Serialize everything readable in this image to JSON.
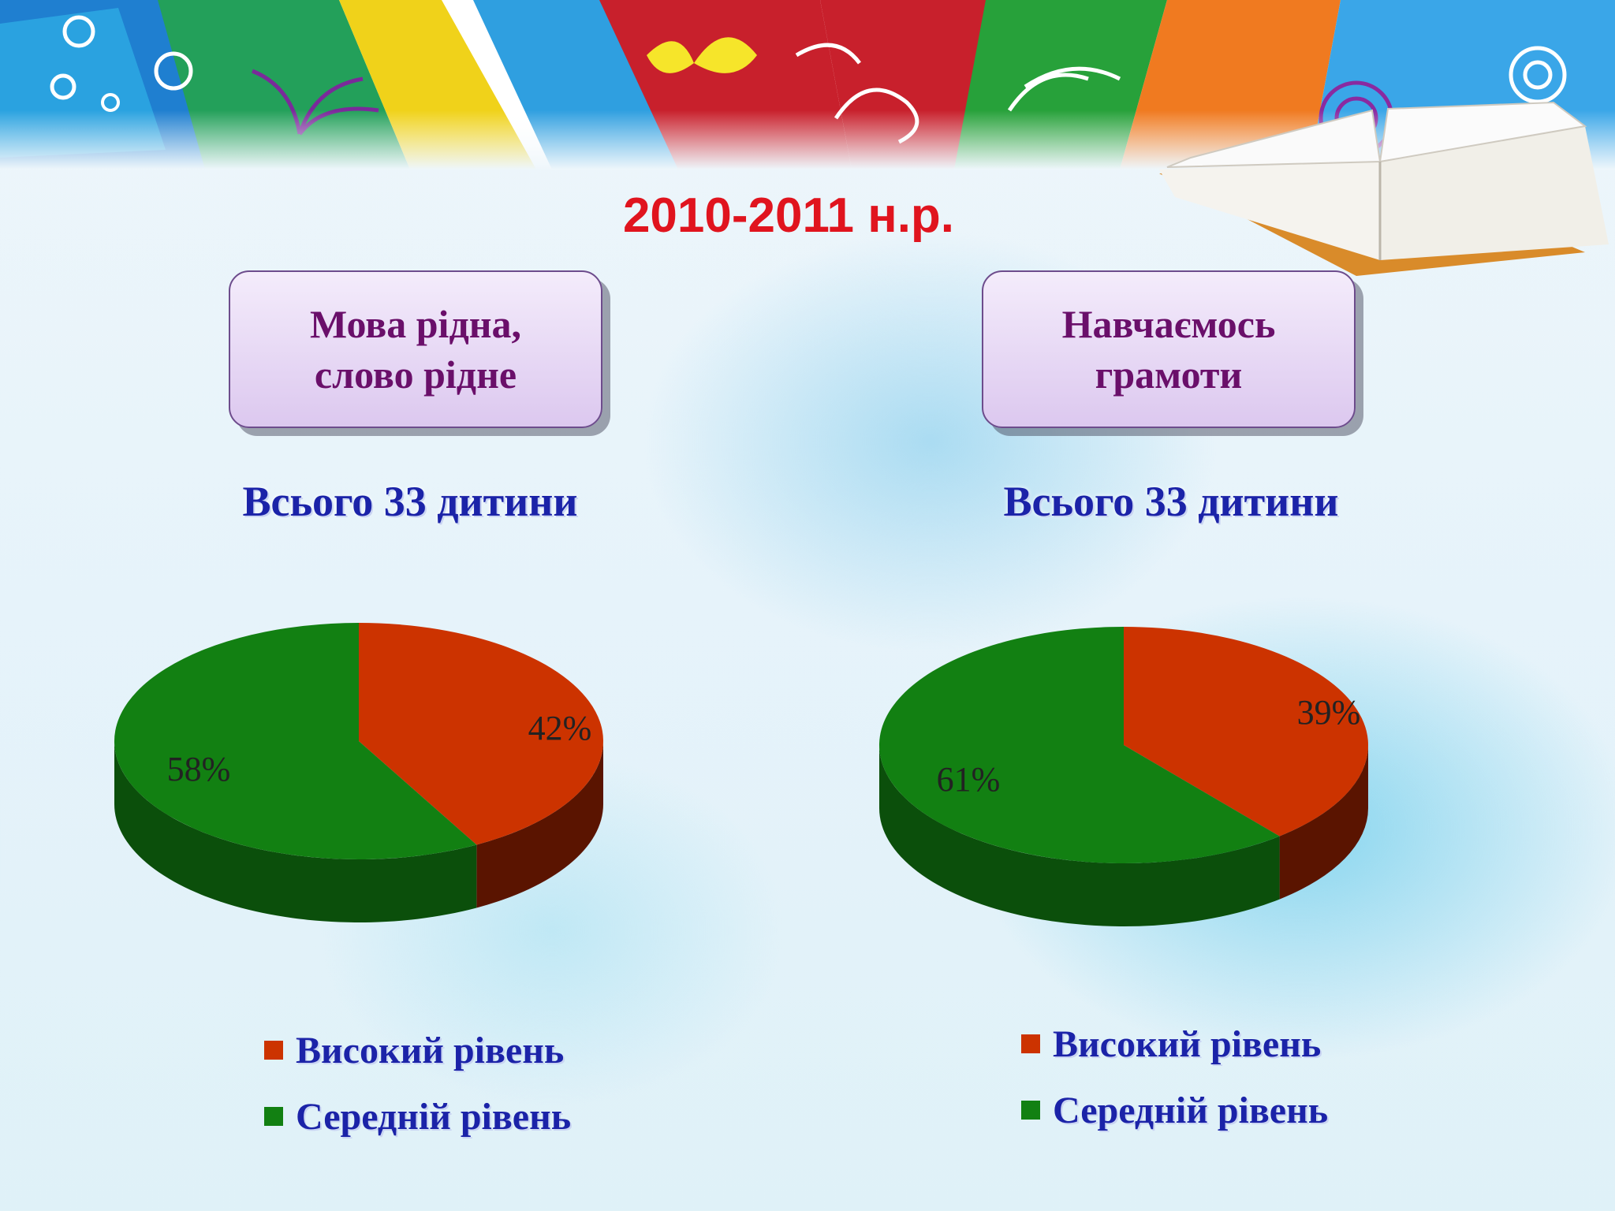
{
  "page": {
    "title": "2010-2011 н.р."
  },
  "colors": {
    "high": "#cc3300",
    "high_dark": "#5a1400",
    "mid": "#128012",
    "mid_dark": "#0b4f0b"
  },
  "sections": [
    {
      "box_line1": "Мова рідна,",
      "box_line2": "слово рідне",
      "total": "Всього 33 дитини"
    },
    {
      "box_line1": "Навчаємось",
      "box_line2": "грамоти",
      "total": "Всього 33 дитини"
    }
  ],
  "chart_data": [
    {
      "type": "pie",
      "categories": [
        "Високий рівень",
        "Середній рівень"
      ],
      "values": [
        42,
        58
      ],
      "value_labels": [
        "42%",
        "58%"
      ],
      "legend_position": "bottom"
    },
    {
      "type": "pie",
      "categories": [
        "Високий рівень",
        "Середній рівень"
      ],
      "values": [
        39,
        61
      ],
      "value_labels": [
        "39%",
        "61%"
      ],
      "legend_position": "bottom"
    }
  ]
}
